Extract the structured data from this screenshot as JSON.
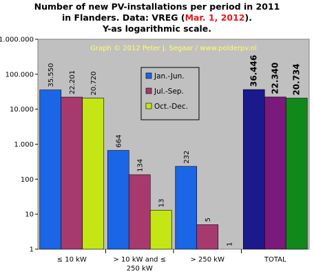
{
  "title": {
    "line1": "Number of new PV-installations per period in 2011",
    "line2_pre": "in Flanders. Data: VREG (",
    "line2_red": "Mar. 1, 2012",
    "line2_post": ").",
    "line3": "Y-as logarithmic  scale."
  },
  "credit": "Graph © 2012 Peter J. Segaar / www.polderpv.nl",
  "colors": {
    "plot_bg": "#c0c0c0",
    "jan_jun": "#1a66e6",
    "jul_sep": "#a63a6e",
    "oct_dec": "#c4e614",
    "total_1": "#1a1a8c",
    "total_2": "#7a1a7a",
    "total_3": "#11881a",
    "credit_text": "#ffff66",
    "title_red": "#e8161f"
  },
  "chart_data": {
    "type": "bar",
    "y_scale": "log",
    "ylim": [
      1,
      1000000
    ],
    "y_ticks": [
      {
        "value": 1,
        "label": "1"
      },
      {
        "value": 10,
        "label": "10"
      },
      {
        "value": 100,
        "label": "100"
      },
      {
        "value": 1000,
        "label": "1.000"
      },
      {
        "value": 10000,
        "label": "10.000"
      },
      {
        "value": 100000,
        "label": "100.000"
      },
      {
        "value": 1000000,
        "label": "1.000.000"
      }
    ],
    "categories": [
      "≤ 10 kW",
      "> 10 kW and ≤ 250 kW",
      "> 250 kW",
      "TOTAL"
    ],
    "category_label_lines": [
      [
        "≤ 10 kW"
      ],
      [
        "> 10 kW and ≤",
        "250 kW"
      ],
      [
        "> 250 kW"
      ],
      [
        "TOTAL"
      ]
    ],
    "series": [
      {
        "name": "Jan.-Jun.",
        "values": [
          35550,
          664,
          232,
          36446
        ],
        "labels": [
          "35.550",
          "664",
          "232",
          "36.446"
        ]
      },
      {
        "name": "Jul.-Sep.",
        "values": [
          22201,
          134,
          5,
          22340
        ],
        "labels": [
          "22.201",
          "134",
          "5",
          "22.340"
        ]
      },
      {
        "name": "Oct.-Dec.",
        "values": [
          20720,
          13,
          1,
          20734
        ],
        "labels": [
          "20.720",
          "13",
          "1",
          "20.734"
        ]
      }
    ],
    "legend_position": "center-left",
    "grid": false
  }
}
